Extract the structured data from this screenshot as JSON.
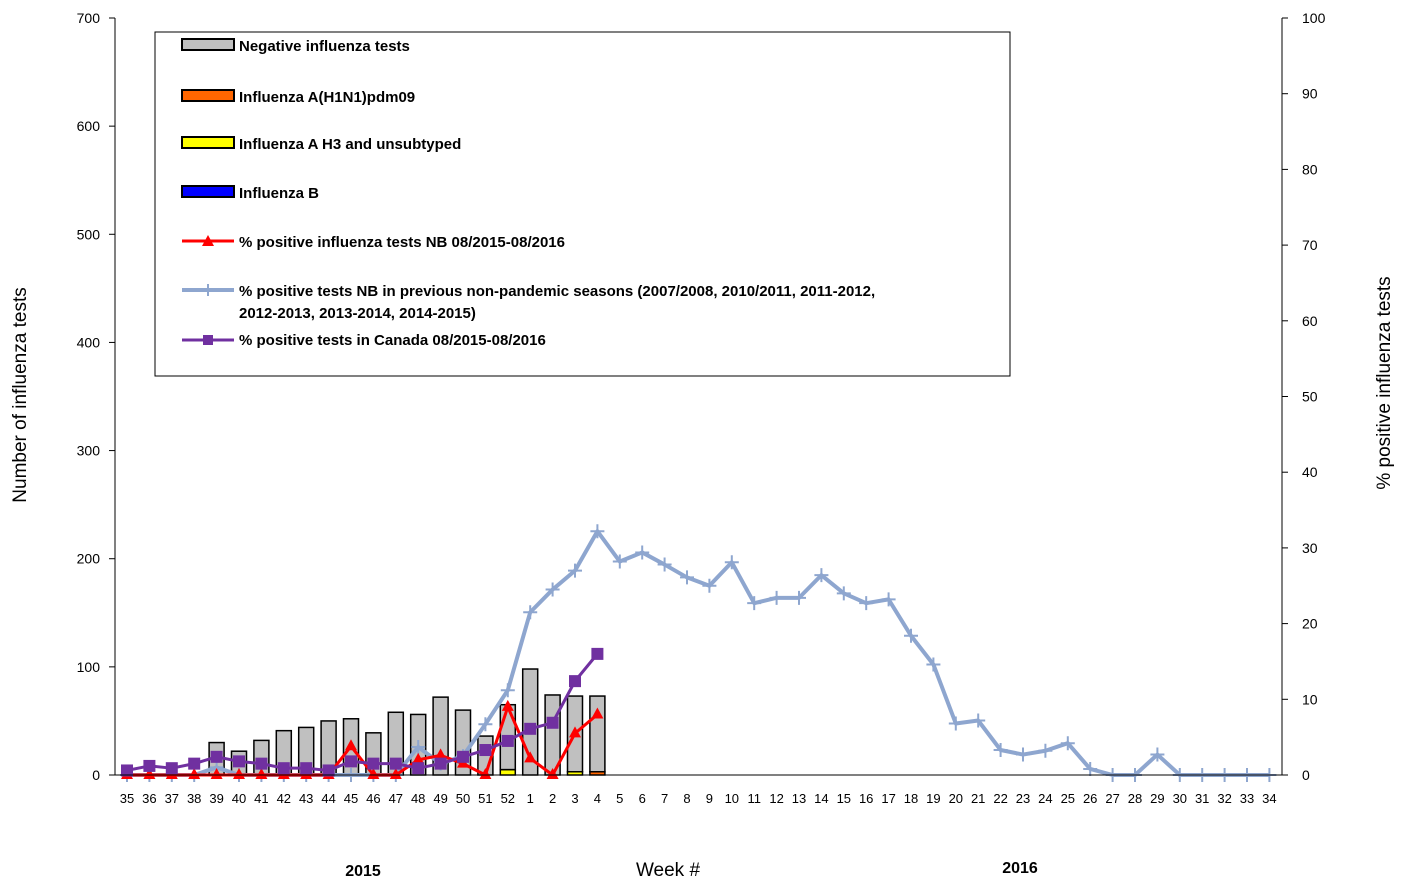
{
  "chart_data": {
    "type": "bar",
    "xlabel": "Week #",
    "ylabel": "Number of influenza tests",
    "y2label": "% positive influenza tests",
    "ylim": [
      0,
      700
    ],
    "y2lim": [
      0,
      100
    ],
    "yticks": [
      "0",
      "100",
      "200",
      "300",
      "400",
      "500",
      "600",
      "700"
    ],
    "y2ticks": [
      "0",
      "10",
      "20",
      "30",
      "40",
      "50",
      "60",
      "70",
      "80",
      "90",
      "100"
    ],
    "categories": [
      "35",
      "36",
      "37",
      "38",
      "39",
      "40",
      "41",
      "42",
      "43",
      "44",
      "45",
      "46",
      "47",
      "48",
      "49",
      "50",
      "51",
      "52",
      "1",
      "2",
      "3",
      "4",
      "5",
      "6",
      "7",
      "8",
      "9",
      "10",
      "11",
      "12",
      "13",
      "14",
      "15",
      "16",
      "17",
      "18",
      "19",
      "20",
      "21",
      "22",
      "23",
      "24",
      "25",
      "26",
      "27",
      "28",
      "29",
      "30",
      "31",
      "32",
      "33",
      "34"
    ],
    "year_labels": [
      {
        "label": "2015",
        "category": "43"
      },
      {
        "label": "2016",
        "category": "22"
      }
    ],
    "bar_series": [
      {
        "name": "Negative influenza tests",
        "color": "#c0c0c0",
        "values": [
          0,
          0,
          0,
          0,
          30,
          22,
          32,
          41,
          44,
          50,
          52,
          39,
          58,
          56,
          72,
          60,
          36,
          60,
          98,
          74,
          70,
          70
        ]
      },
      {
        "name": "Influenza A(H1N1)pdm09",
        "color": "#ff6600",
        "values": [
          0,
          0,
          0,
          0,
          0,
          0,
          0,
          0,
          0,
          0,
          0,
          0,
          0,
          0,
          0,
          0,
          0,
          0,
          0,
          0,
          0,
          3
        ]
      },
      {
        "name": "Influenza A H3 and unsubtyped",
        "color": "#ffff00",
        "values": [
          0,
          0,
          0,
          0,
          0,
          0,
          0,
          0,
          0,
          0,
          0,
          0,
          0,
          0,
          0,
          0,
          0,
          5,
          0,
          0,
          3,
          0
        ]
      },
      {
        "name": "Influenza B",
        "color": "#0000ff",
        "values": [
          0,
          0,
          0,
          0,
          0,
          0,
          0,
          0,
          0,
          0,
          0,
          0,
          0,
          0,
          0,
          0,
          0,
          0,
          0,
          0,
          0,
          0
        ]
      }
    ],
    "line_series": [
      {
        "name": "% positive influenza tests NB 08/2015-08/2016",
        "color": "#ff0000",
        "marker": "triangle",
        "axis": "right",
        "values": [
          0,
          0,
          0,
          0,
          0,
          0,
          0,
          0,
          0,
          0,
          3.8,
          0,
          0,
          2,
          2.6,
          1.5,
          0,
          9,
          2.2,
          0,
          5.5,
          8
        ]
      },
      {
        "name": "% positive tests NB in previous non-pandemic seasons (2007/2008, 2010/2011, 2011-2012, 2012-2013, 2013-2014, 2014-2015)",
        "color": "#8ea6cf",
        "marker": "plus",
        "axis": "right",
        "values": [
          0,
          0,
          0,
          0,
          1,
          0,
          0,
          0,
          0,
          0,
          0,
          0,
          0,
          3.7,
          1.5,
          2.5,
          6.7,
          11.2,
          21.5,
          24.5,
          27,
          32.2,
          28.2,
          29.4,
          27.8,
          26.1,
          25,
          28.1,
          22.7,
          23.4,
          23.4,
          26.4,
          24,
          22.7,
          23.2,
          18.4,
          14.6,
          6.8,
          7.2,
          3.3,
          2.7,
          3.2,
          4.2,
          0.8,
          0,
          0,
          2.7,
          0,
          0,
          0,
          0,
          0
        ]
      },
      {
        "name": "% positive tests  in Canada 08/2015-08/2016",
        "color": "#7030a0",
        "marker": "square",
        "axis": "right",
        "values": [
          0.6,
          1.2,
          0.9,
          1.5,
          2.4,
          1.8,
          1.5,
          0.9,
          0.9,
          0.6,
          1.8,
          1.5,
          1.5,
          0.9,
          1.5,
          2.4,
          3.3,
          4.5,
          6.1,
          6.9,
          12.4,
          16
        ]
      }
    ],
    "legend_position": "top-left"
  }
}
